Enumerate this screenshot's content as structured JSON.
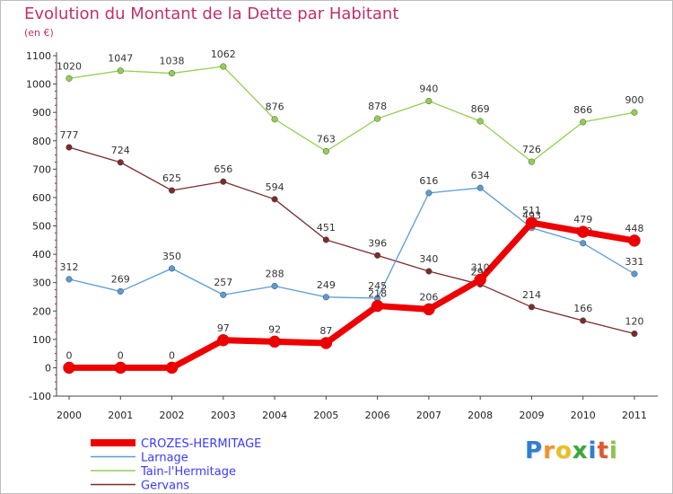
{
  "title": "Evolution du Montant de la Dette par Habitant",
  "subtitle": "(en €)",
  "logo": {
    "text": "Proxiti",
    "letters": [
      {
        "ch": "P",
        "color": "#2f7fd1"
      },
      {
        "ch": "r",
        "color": "#f0932b"
      },
      {
        "ch": "o",
        "color": "#e8c020"
      },
      {
        "ch": "x",
        "color": "#3aa83a"
      },
      {
        "ch": "i",
        "color": "#2f7fd1"
      },
      {
        "ch": "t",
        "color": "#e05a2a"
      },
      {
        "ch": "i",
        "color": "#8bc34a"
      }
    ]
  },
  "chart_data": {
    "type": "line",
    "title": "Evolution du Montant de la Dette par Habitant",
    "subtitle": "(en €)",
    "categories": [
      "2000",
      "2001",
      "2002",
      "2003",
      "2004",
      "2005",
      "2006",
      "2007",
      "2008",
      "2009",
      "2010",
      "2011"
    ],
    "ylim": [
      -100,
      1100
    ],
    "yticks": [
      -100,
      0,
      100,
      200,
      300,
      400,
      500,
      600,
      700,
      800,
      900,
      1000,
      1100
    ],
    "grid": false,
    "legend": "bottom-left",
    "series": [
      {
        "name": "CROZES-HERMITAGE",
        "color": "#ee0000",
        "values": [
          0,
          0,
          0,
          97,
          92,
          87,
          218,
          206,
          310,
          511,
          479,
          448
        ],
        "labels": [
          "0",
          "0",
          "0",
          "97",
          "92",
          "87",
          "218",
          "206",
          "310",
          "511",
          "479",
          "448"
        ]
      },
      {
        "name": "Larnage",
        "color": "#5b9bd5",
        "values": [
          312,
          269,
          350,
          257,
          288,
          249,
          245,
          616,
          634,
          493,
          439,
          331
        ],
        "labels": [
          "312",
          "269",
          "350",
          "257",
          "288",
          "249",
          "245",
          "616",
          "634",
          "493",
          "439",
          "331"
        ]
      },
      {
        "name": "Tain-l'Hermitage",
        "color": "#92d050",
        "values": [
          1020,
          1047,
          1038,
          1062,
          876,
          763,
          878,
          940,
          869,
          726,
          866,
          900
        ],
        "labels": [
          "1020",
          "1047",
          "1038",
          "1062",
          "876",
          "763",
          "878",
          "940",
          "869",
          "726",
          "866",
          "900"
        ]
      },
      {
        "name": "Gervans",
        "color": "#7b2c2c",
        "values": [
          777,
          724,
          625,
          656,
          594,
          451,
          396,
          340,
          294,
          214,
          166,
          120
        ],
        "labels": [
          "777",
          "724",
          "625",
          "656",
          "594",
          "451",
          "396",
          "340",
          "294",
          "214",
          "166",
          "120"
        ]
      }
    ]
  }
}
